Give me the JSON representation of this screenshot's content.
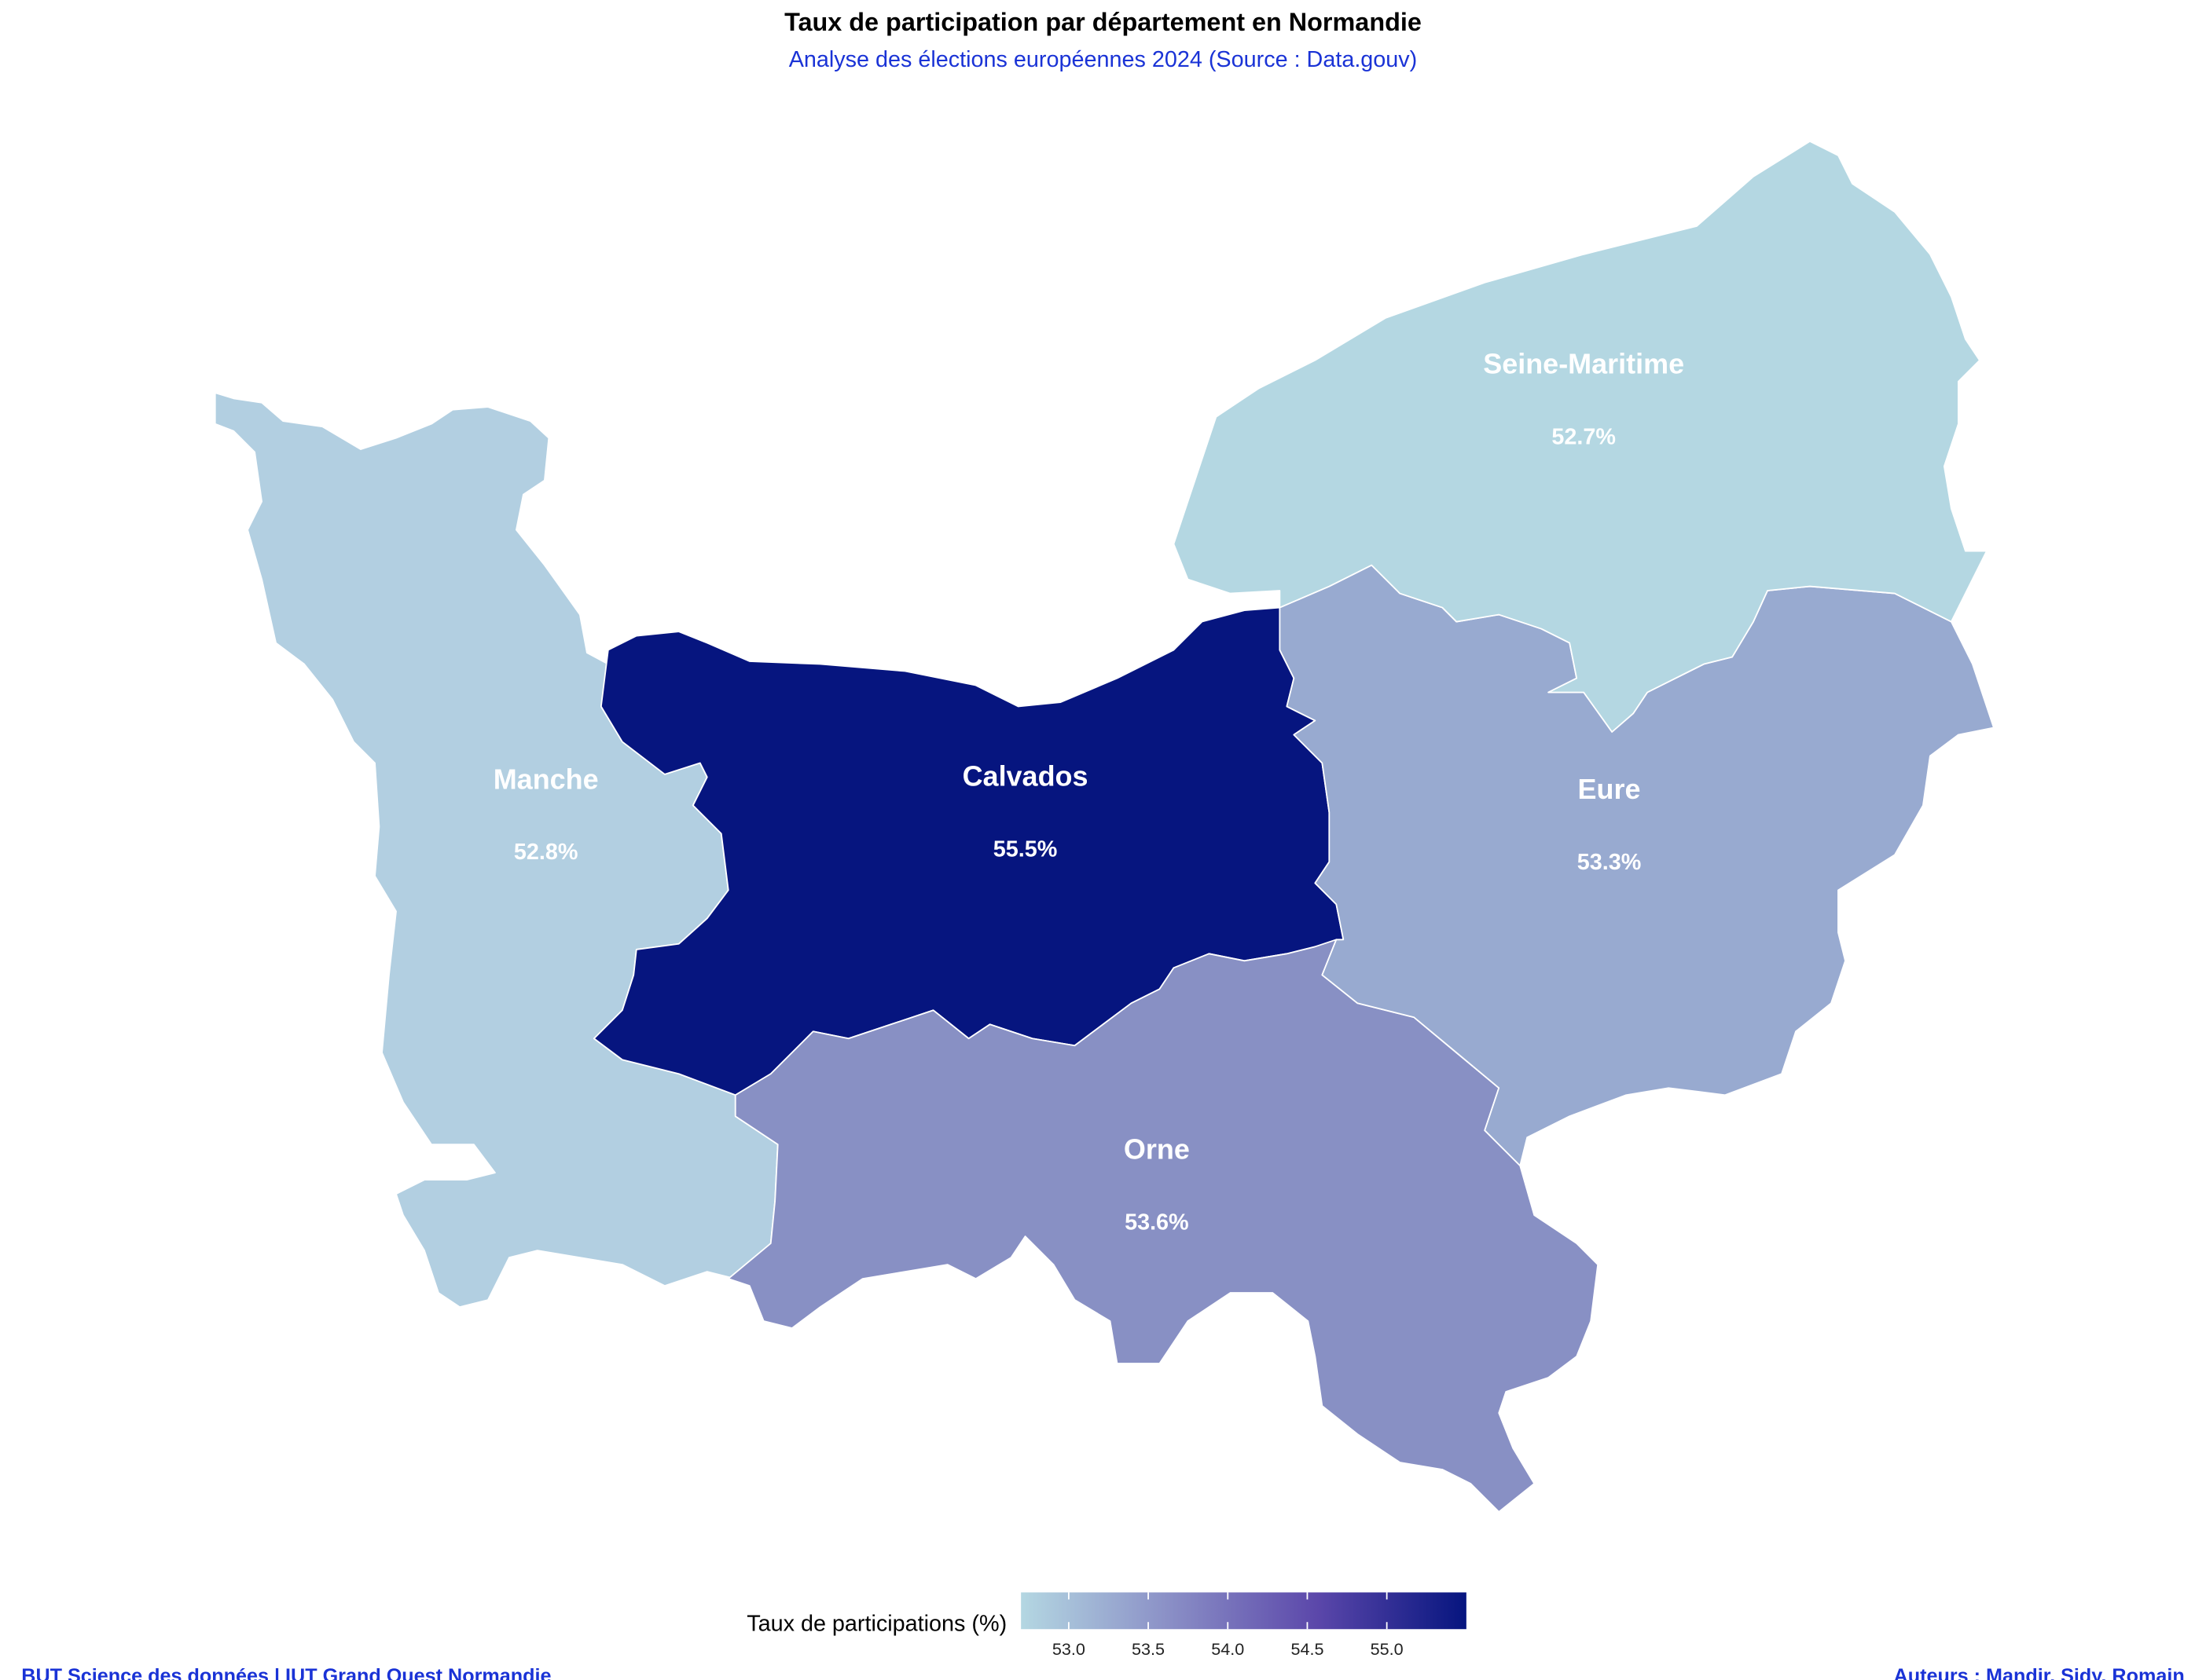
{
  "chart_data": {
    "type": "choropleth",
    "title": "Taux de participation par département en Normandie",
    "subtitle": "Analyse des élections européennes 2024 (Source : Data.gouv)",
    "categories": [
      "Manche",
      "Calvados",
      "Orne",
      "Eure",
      "Seine-Maritime"
    ],
    "values": [
      52.8,
      55.5,
      53.6,
      53.3,
      52.7
    ],
    "value_labels": [
      "52.8%",
      "55.5%",
      "53.6%",
      "53.3%",
      "52.7%"
    ],
    "colors": [
      "#b2cfe1",
      "#06157f",
      "#8890c4",
      "#98aad0",
      "#b4d7e2"
    ],
    "colorbar": {
      "title": "Taux de participations (%)",
      "lim": [
        52.7,
        55.5
      ],
      "ticks": [
        {
          "value": 53,
          "label": "53.0"
        },
        {
          "value": 53.5,
          "label": "53.5"
        },
        {
          "value": 54,
          "label": "54.0"
        },
        {
          "value": 54.5,
          "label": "54.5"
        },
        {
          "value": 55,
          "label": "55.0"
        }
      ],
      "colors": [
        "#b4d7e2",
        "#8a8fc6",
        "#5b47aa",
        "#06157f"
      ]
    },
    "caption_left": "BUT Science des données | IUT Grand Ouest Normandie",
    "caption_right": "Auteurs : Mandir, Sidy, Romain"
  }
}
